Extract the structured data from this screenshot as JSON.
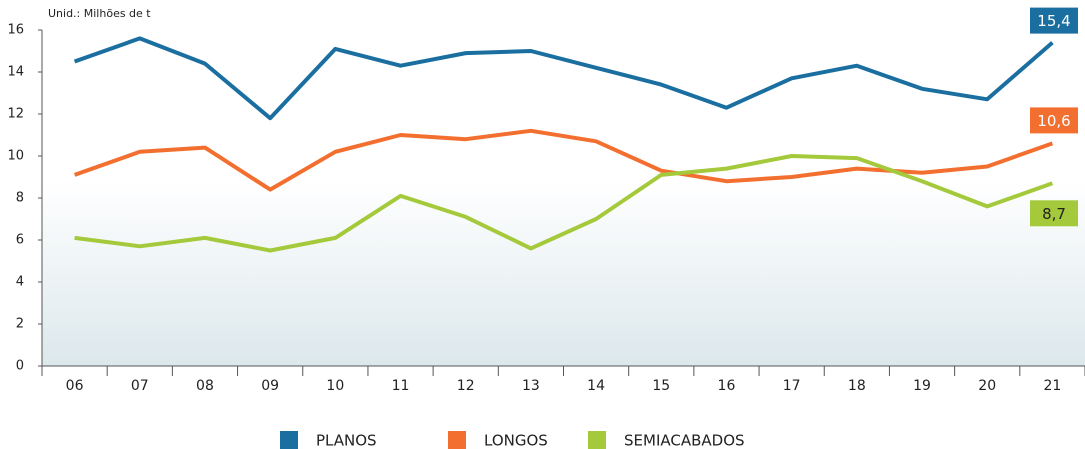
{
  "chart_data": {
    "type": "line",
    "y_unit_label": "Unid.: Milhões de t",
    "categories": [
      "06",
      "07",
      "08",
      "09",
      "10",
      "11",
      "12",
      "13",
      "14",
      "15",
      "16",
      "17",
      "18",
      "19",
      "20",
      "21"
    ],
    "ylim": [
      0,
      16
    ],
    "yticks": [
      0,
      2,
      4,
      6,
      8,
      10,
      12,
      14,
      16
    ],
    "series": [
      {
        "name": "PLANOS",
        "color": "#1a6fa0",
        "values": [
          14.5,
          15.6,
          14.4,
          11.8,
          15.1,
          14.3,
          14.9,
          15.0,
          14.2,
          13.4,
          12.3,
          13.7,
          14.3,
          13.2,
          12.7,
          15.4
        ],
        "value_labels": [
          null,
          null,
          null,
          null,
          null,
          null,
          null,
          null,
          null,
          null,
          null,
          null,
          null,
          null,
          null,
          "15,4"
        ]
      },
      {
        "name": "LONGOS",
        "color": "#f36f2f",
        "values": [
          9.1,
          10.2,
          10.4,
          8.4,
          10.2,
          11.0,
          10.8,
          11.2,
          10.7,
          9.3,
          8.8,
          9.0,
          9.4,
          9.2,
          9.5,
          10.6
        ],
        "value_labels": [
          null,
          null,
          null,
          null,
          null,
          null,
          null,
          null,
          null,
          null,
          null,
          null,
          null,
          null,
          null,
          "10,6"
        ]
      },
      {
        "name": "SEMIACABADOS",
        "color": "#a4c93b",
        "values": [
          6.1,
          5.7,
          6.1,
          5.5,
          6.1,
          8.1,
          7.1,
          5.6,
          7.0,
          9.1,
          9.4,
          10.0,
          9.9,
          8.8,
          7.6,
          8.7
        ],
        "value_labels": [
          null,
          null,
          null,
          null,
          null,
          null,
          null,
          null,
          null,
          null,
          null,
          null,
          null,
          null,
          null,
          "8,7"
        ]
      }
    ]
  }
}
